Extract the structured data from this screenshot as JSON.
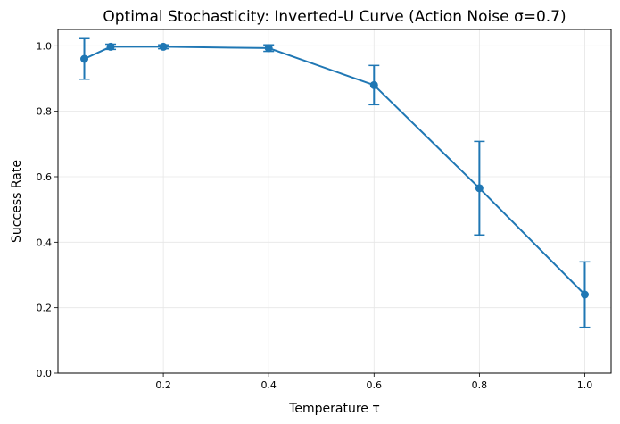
{
  "chart_data": {
    "type": "line",
    "title": "Optimal Stochasticity: Inverted-U Curve (Action Noise σ=0.7)",
    "xlabel": "Temperature τ",
    "ylabel": "Success Rate",
    "xlim": [
      0.0,
      1.05
    ],
    "ylim": [
      0.0,
      1.05
    ],
    "xticks": [
      0.2,
      0.4,
      0.6,
      0.8,
      1.0
    ],
    "xtick_labels": [
      "0.2",
      "0.4",
      "0.6",
      "0.8",
      "1.0"
    ],
    "yticks": [
      0.0,
      0.2,
      0.4,
      0.6,
      0.8,
      1.0
    ],
    "ytick_labels": [
      "0.0",
      "0.2",
      "0.4",
      "0.6",
      "0.8",
      "1.0"
    ],
    "grid": true,
    "color": "#1f77b4",
    "series": [
      {
        "x": [
          0.05,
          0.1,
          0.2,
          0.4,
          0.6,
          0.8,
          1.0
        ],
        "values": [
          0.96,
          0.997,
          0.997,
          0.993,
          0.88,
          0.565,
          0.24
        ],
        "error": [
          0.062,
          0.008,
          0.006,
          0.01,
          0.06,
          0.143,
          0.1
        ]
      }
    ]
  }
}
